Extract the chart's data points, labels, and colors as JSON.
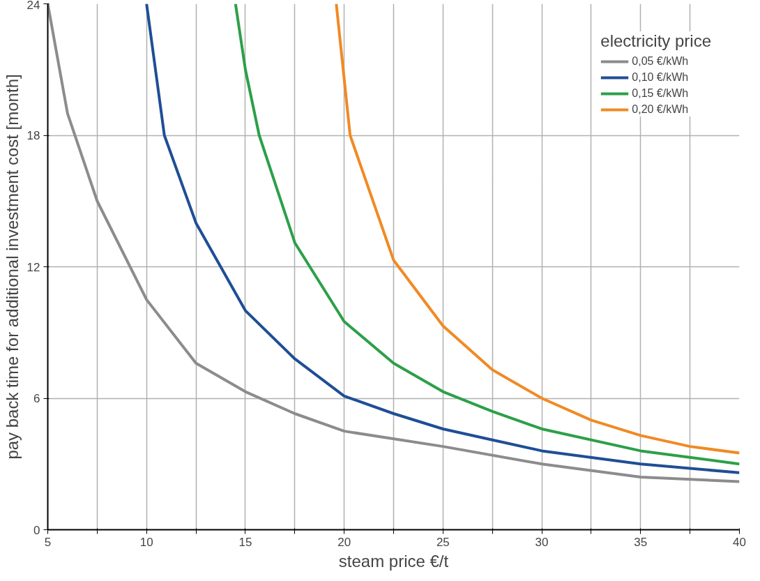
{
  "chart_data": {
    "type": "line",
    "xlabel": "steam price €/t",
    "ylabel": "pay back time for additional investment cost [month]",
    "legend_title": "electricity price",
    "xlim": [
      5,
      40
    ],
    "ylim": [
      0,
      24
    ],
    "xticks": [
      5,
      {
        "value": 7.5,
        "label": null
      },
      10,
      {
        "value": 12.5,
        "label": null
      },
      15,
      {
        "value": 17.5,
        "label": null
      },
      20,
      {
        "value": 22.5,
        "label": null
      },
      25,
      {
        "value": 27.5,
        "label": null
      },
      30,
      {
        "value": 32.5,
        "label": null
      },
      35,
      {
        "value": 37.5,
        "label": null
      },
      40
    ],
    "yticks": [
      0,
      6,
      12,
      18,
      24
    ],
    "grid": true,
    "legend": "top right",
    "line_style": "solid",
    "marker": "none",
    "series": [
      {
        "name": "0,05 €/kWh",
        "color": "#8c8c8c",
        "x": [
          5,
          6,
          7.5,
          10,
          12.5,
          15,
          17.5,
          20,
          25,
          30,
          35,
          40
        ],
        "values": [
          24,
          19,
          15,
          10.5,
          7.6,
          6.3,
          5.3,
          4.5,
          3.8,
          3.0,
          2.4,
          2.2
        ]
      },
      {
        "name": "0,10 €/kWh",
        "color": "#1f4e96",
        "x": [
          10,
          10.9,
          12.5,
          15,
          17.5,
          20,
          22.5,
          25,
          27.5,
          30,
          35,
          40
        ],
        "values": [
          24,
          18,
          14,
          10,
          7.8,
          6.1,
          5.3,
          4.6,
          4.1,
          3.6,
          3.0,
          2.6
        ]
      },
      {
        "name": "0,15 €/kWh",
        "color": "#2ca048",
        "x": [
          14.5,
          15,
          15.7,
          17.5,
          20,
          22.5,
          25,
          27.5,
          30,
          35,
          40
        ],
        "values": [
          24,
          21,
          18,
          13.1,
          9.5,
          7.6,
          6.3,
          5.4,
          4.6,
          3.6,
          3.0
        ]
      },
      {
        "name": "0,20 €/kWh",
        "color": "#f08a24",
        "x": [
          19.6,
          20.3,
          22.5,
          25,
          27.5,
          30,
          32.5,
          35,
          37.5,
          40
        ],
        "values": [
          24,
          18,
          12.3,
          9.3,
          7.3,
          6.0,
          5.0,
          4.3,
          3.8,
          3.5
        ]
      }
    ]
  }
}
